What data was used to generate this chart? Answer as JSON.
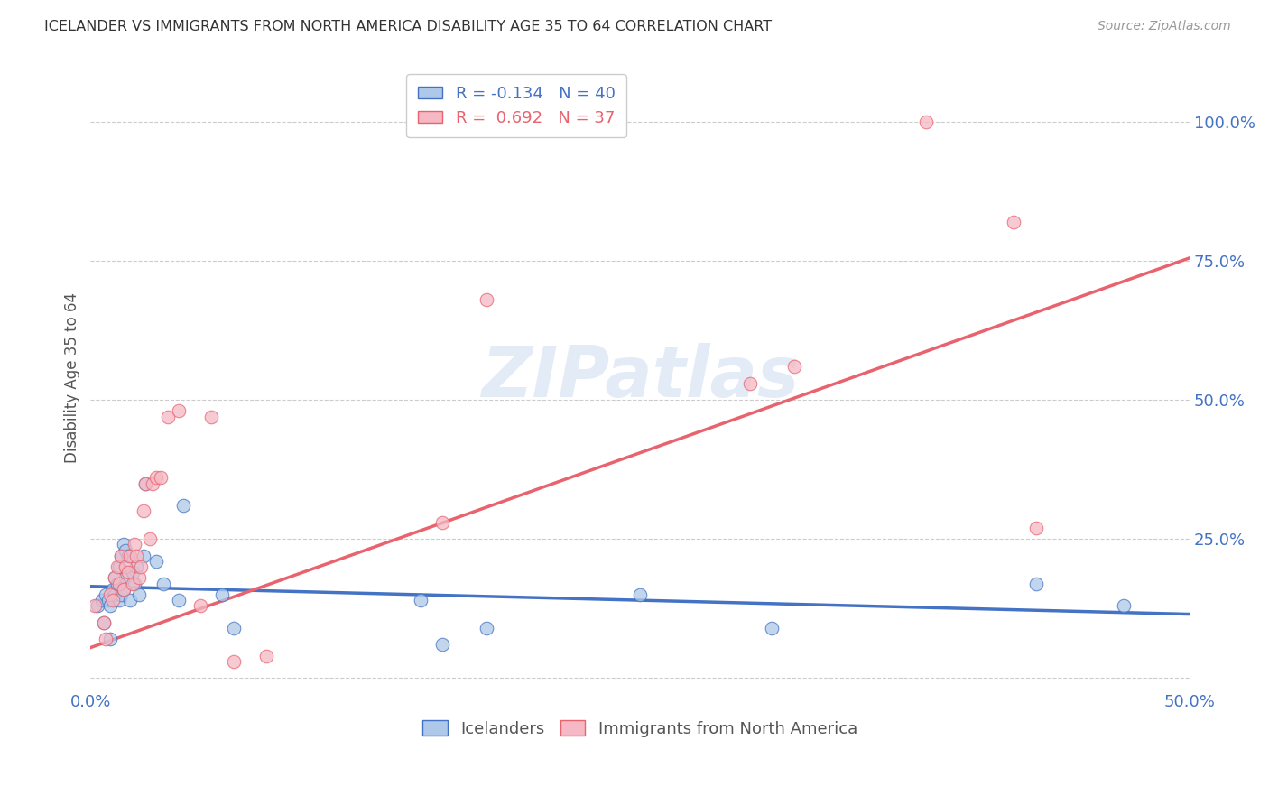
{
  "title": "ICELANDER VS IMMIGRANTS FROM NORTH AMERICA DISABILITY AGE 35 TO 64 CORRELATION CHART",
  "source": "Source: ZipAtlas.com",
  "ylabel": "Disability Age 35 to 64",
  "xlim": [
    0.0,
    0.5
  ],
  "ylim": [
    -0.02,
    1.1
  ],
  "watermark": "ZIPatlas",
  "legend_r_blue": "-0.134",
  "legend_n_blue": 40,
  "legend_r_pink": "0.692",
  "legend_n_pink": 37,
  "blue_color": "#adc8e8",
  "pink_color": "#f5b8c4",
  "line_blue": "#4472c4",
  "line_pink": "#e8636e",
  "title_color": "#333333",
  "axis_color": "#4472c4",
  "blue_scatter_x": [
    0.003,
    0.005,
    0.006,
    0.007,
    0.008,
    0.009,
    0.009,
    0.01,
    0.011,
    0.011,
    0.012,
    0.013,
    0.013,
    0.014,
    0.014,
    0.015,
    0.015,
    0.016,
    0.016,
    0.017,
    0.018,
    0.019,
    0.02,
    0.021,
    0.022,
    0.024,
    0.025,
    0.03,
    0.033,
    0.04,
    0.042,
    0.06,
    0.065,
    0.15,
    0.16,
    0.18,
    0.25,
    0.31,
    0.43,
    0.47
  ],
  "blue_scatter_y": [
    0.13,
    0.14,
    0.1,
    0.15,
    0.14,
    0.13,
    0.07,
    0.16,
    0.15,
    0.18,
    0.17,
    0.14,
    0.2,
    0.15,
    0.22,
    0.16,
    0.24,
    0.18,
    0.23,
    0.22,
    0.14,
    0.19,
    0.17,
    0.2,
    0.15,
    0.22,
    0.35,
    0.21,
    0.17,
    0.14,
    0.31,
    0.15,
    0.09,
    0.14,
    0.06,
    0.09,
    0.15,
    0.09,
    0.17,
    0.13
  ],
  "pink_scatter_x": [
    0.002,
    0.006,
    0.007,
    0.009,
    0.01,
    0.011,
    0.012,
    0.013,
    0.014,
    0.015,
    0.016,
    0.017,
    0.018,
    0.019,
    0.02,
    0.021,
    0.022,
    0.023,
    0.024,
    0.025,
    0.027,
    0.028,
    0.03,
    0.032,
    0.035,
    0.04,
    0.05,
    0.055,
    0.065,
    0.08,
    0.16,
    0.18,
    0.3,
    0.32,
    0.38,
    0.42,
    0.43
  ],
  "pink_scatter_y": [
    0.13,
    0.1,
    0.07,
    0.15,
    0.14,
    0.18,
    0.2,
    0.17,
    0.22,
    0.16,
    0.2,
    0.19,
    0.22,
    0.17,
    0.24,
    0.22,
    0.18,
    0.2,
    0.3,
    0.35,
    0.25,
    0.35,
    0.36,
    0.36,
    0.47,
    0.48,
    0.13,
    0.47,
    0.03,
    0.04,
    0.28,
    0.68,
    0.53,
    0.56,
    1.0,
    0.82,
    0.27
  ],
  "blue_line_x0": 0.0,
  "blue_line_x1": 0.5,
  "blue_line_y0": 0.165,
  "blue_line_y1": 0.115,
  "pink_line_x0": 0.0,
  "pink_line_x1": 0.5,
  "pink_line_y0": 0.055,
  "pink_line_y1": 0.755
}
